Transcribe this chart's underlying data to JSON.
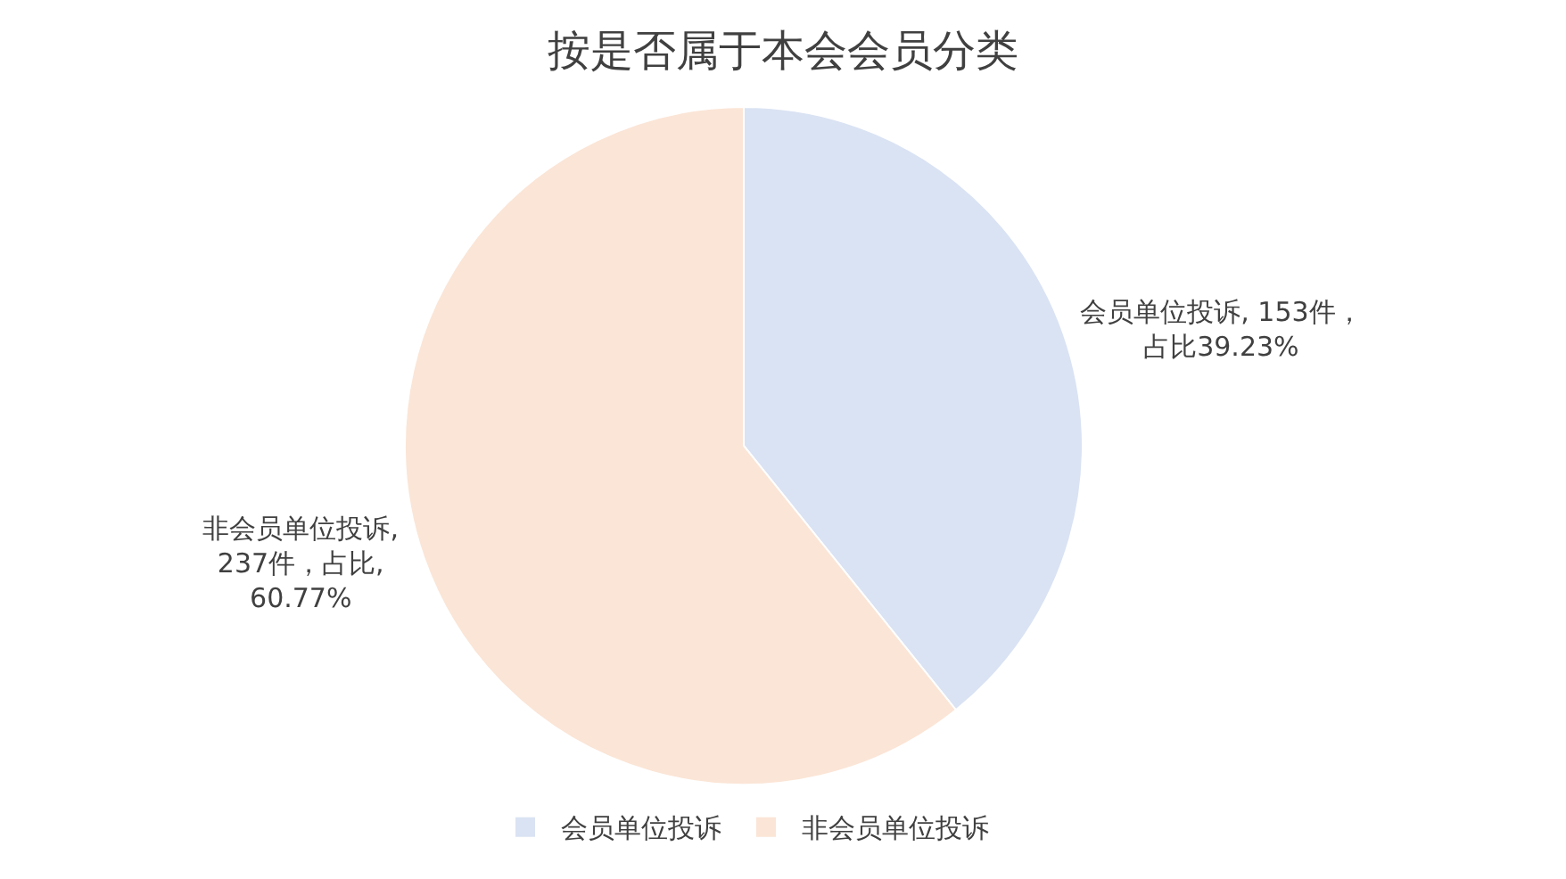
{
  "chart_data": {
    "type": "pie",
    "title": "按是否属于本会会员分类",
    "categories": [
      "会员单位投诉",
      "非会员单位投诉"
    ],
    "values": [
      153,
      237
    ],
    "colors": [
      "#dae3f3",
      "#fbe5d6"
    ],
    "value_labels": [
      "会员单位投诉, 153件，占比39.23%",
      "非会员单位投诉,237件，占比,60.77%"
    ],
    "legend": "bottom"
  }
}
